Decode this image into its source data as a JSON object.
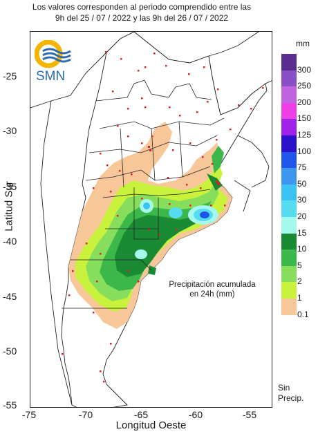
{
  "header": {
    "line1": "Los valores corresponden al periodo comprendido entre las",
    "line2": "9h del 25 / 07 / 2022  y las 9h del 26 / 07 / 2022"
  },
  "logo": {
    "text": "SMN",
    "icon": "smn-logo-icon"
  },
  "axes": {
    "xlabel": "Longitud Oeste",
    "ylabel": "Latitud Sur",
    "xticks": [
      "-75",
      "-70",
      "-65",
      "-60",
      "-55"
    ],
    "yticks": [
      "-25",
      "-30",
      "-35",
      "-40",
      "-45",
      "-50",
      "-55"
    ]
  },
  "annotation": {
    "line1": "Precipitación acumulada",
    "line2": "en 24h (mm)"
  },
  "legend": {
    "unit": "mm",
    "items": [
      {
        "label": "300",
        "color": "#5a2e8f"
      },
      {
        "label": "250",
        "color": "#8a4fc4"
      },
      {
        "label": "200",
        "color": "#c064e0"
      },
      {
        "label": "150",
        "color": "#ee3fe4"
      },
      {
        "label": "125",
        "color": "#a022e8"
      },
      {
        "label": "100",
        "color": "#2a10c8"
      },
      {
        "label": "75",
        "color": "#1f55e8"
      },
      {
        "label": "50",
        "color": "#3d96f0"
      },
      {
        "label": "30",
        "color": "#39c2f2"
      },
      {
        "label": "20",
        "color": "#55dcf0"
      },
      {
        "label": "15",
        "color": "#a5f8ec"
      },
      {
        "label": "10",
        "color": "#1a8a34"
      },
      {
        "label": "5",
        "color": "#3cb84a"
      },
      {
        "label": "2",
        "color": "#86de5c"
      },
      {
        "label": "1",
        "color": "#c8f23c"
      },
      {
        "label": "0.1",
        "color": "#f7c79a"
      }
    ],
    "no_precip": {
      "line1": "Sin",
      "line2": "Precip."
    }
  }
}
